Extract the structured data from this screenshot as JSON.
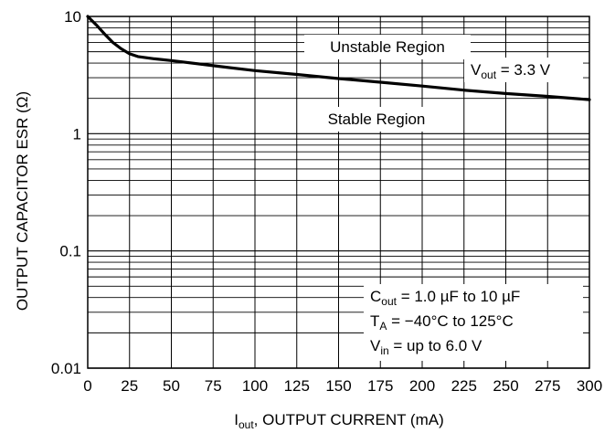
{
  "chart_data": {
    "type": "line",
    "title": "",
    "xlabel": {
      "main": "I",
      "sub": "out",
      "rest": ", OUTPUT CURRENT (mA)"
    },
    "ylabel": "OUTPUT CAPACITOR ESR (Ω)",
    "xlim": [
      0,
      300
    ],
    "ylim": [
      0.01,
      10
    ],
    "yscale": "log",
    "grid": true,
    "x_ticks": [
      0,
      25,
      50,
      75,
      100,
      125,
      150,
      175,
      200,
      225,
      250,
      275,
      300
    ],
    "y_ticks": [
      {
        "value": 10,
        "label": "10"
      },
      {
        "value": 1,
        "label": "1"
      },
      {
        "value": 0.1,
        "label": "0.1"
      },
      {
        "value": 0.01,
        "label": "0.01"
      }
    ],
    "series": [
      {
        "x": [
          0,
          5,
          10,
          15,
          20,
          25,
          30,
          40,
          50,
          75,
          100,
          125,
          150,
          175,
          200,
          225,
          250,
          275,
          300
        ],
        "y": [
          10,
          8.5,
          7.1,
          6.0,
          5.3,
          4.8,
          4.55,
          4.35,
          4.2,
          3.8,
          3.45,
          3.2,
          2.95,
          2.75,
          2.55,
          2.35,
          2.2,
          2.08,
          1.95
        ]
      }
    ],
    "annotations": {
      "unstable": "Unstable Region",
      "stable": "Stable Region",
      "vout": {
        "main": "V",
        "sub": "out",
        "rest": " = 3.3 V"
      },
      "cout": {
        "main": "C",
        "sub": "out",
        "rest": " = 1.0 µF to 10 µF"
      },
      "ta": {
        "main": "T",
        "sub": "A",
        "rest": " = −40°C to 125°C"
      },
      "vin": {
        "main": "V",
        "sub": "in",
        "rest": " = up to 6.0 V"
      }
    },
    "line_color": "#000000",
    "grid_color": "#000000"
  }
}
